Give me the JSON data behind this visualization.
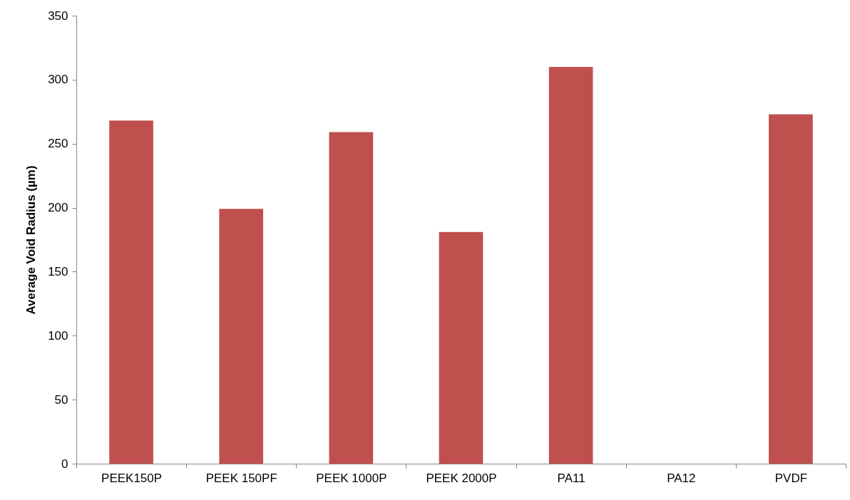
{
  "chart_data": {
    "type": "bar",
    "ylabel": "Average Void Radius (µm)",
    "categories": [
      "PEEK150P",
      "PEEK 150PF",
      "PEEK 1000P",
      "PEEK 2000P",
      "PA11",
      "PA12",
      "PVDF"
    ],
    "values": [
      268,
      199,
      259,
      181,
      310,
      null,
      273
    ],
    "color": "#c0504d",
    "ylim": [
      0,
      350
    ],
    "yticks": [
      0,
      50,
      100,
      150,
      200,
      250,
      300,
      350
    ],
    "grid": false
  }
}
